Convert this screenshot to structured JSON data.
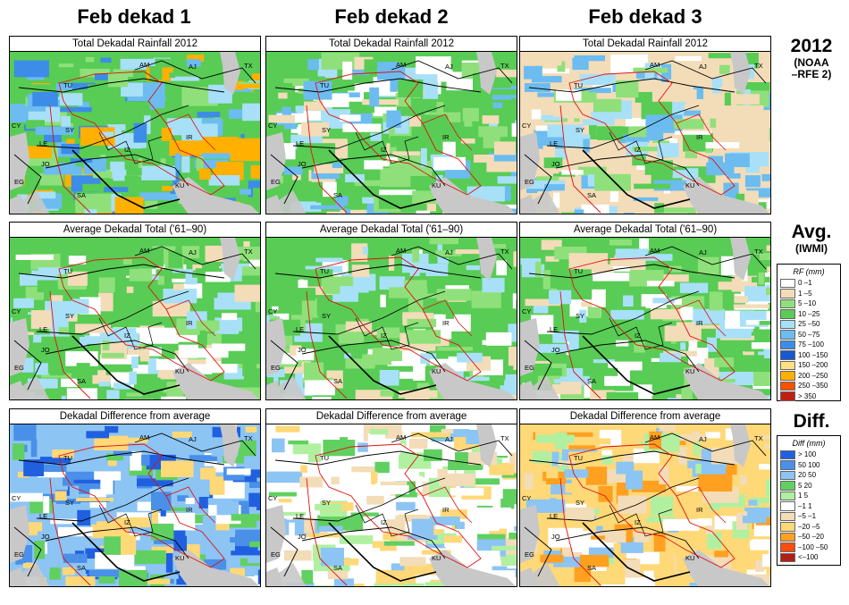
{
  "columns": [
    "Feb dekad 1",
    "Feb dekad 2",
    "Feb dekad 3"
  ],
  "rows": [
    {
      "title": "Total Dekadal Rainfall 2012",
      "label": "2012",
      "sublabel": "(NOAA\n–RFE 2)",
      "kind": "total"
    },
    {
      "title": "Average Dekadal Total ('61–90)",
      "label": "Avg.",
      "sublabel": "(IWMI)",
      "kind": "avg"
    },
    {
      "title": "Dekadal Difference from average",
      "label": "Diff.",
      "sublabel": "",
      "kind": "diff"
    }
  ],
  "map_labels": [
    "AM",
    "AJ",
    "TX",
    "TU",
    "CY",
    "SY",
    "IR",
    "LE",
    "IZ",
    "JO",
    "EG",
    "KU",
    "SA"
  ],
  "rf_legend": {
    "title": "RF (mm)",
    "items": [
      {
        "label": "0 –1",
        "color": "#ffffff"
      },
      {
        "label": "1 –5",
        "color": "#f3dcb8"
      },
      {
        "label": "5 –10",
        "color": "#8fe07a"
      },
      {
        "label": "10 –25",
        "color": "#58cc55"
      },
      {
        "label": "25 –50",
        "color": "#a8e0f8"
      },
      {
        "label": "50 –75",
        "color": "#6cbcf0"
      },
      {
        "label": "75 –100",
        "color": "#3c8ce8"
      },
      {
        "label": "100 –150",
        "color": "#1858d0"
      },
      {
        "label": "150 –200",
        "color": "#ffe080"
      },
      {
        "label": "200 –250",
        "color": "#ffb000"
      },
      {
        "label": "250 –350",
        "color": "#ff5000"
      },
      {
        "label": "> 350",
        "color": "#c02010"
      }
    ]
  },
  "diff_legend": {
    "title": "Diff (mm)",
    "items": [
      {
        "label": "> 100",
        "color": "#2060e0"
      },
      {
        "label": "50 100",
        "color": "#4a90e8"
      },
      {
        "label": "20  50",
        "color": "#8cc4f4"
      },
      {
        "label": "5  20",
        "color": "#60d060"
      },
      {
        "label": "1   5",
        "color": "#b0f0a0"
      },
      {
        "label": "–1   1",
        "color": "#ffffff"
      },
      {
        "label": "–5  –1",
        "color": "#f3dcb8"
      },
      {
        "label": "–20  –5",
        "color": "#ffd878"
      },
      {
        "label": "–50  –20",
        "color": "#ffa020"
      },
      {
        "label": "–100 –50",
        "color": "#ff4a10"
      },
      {
        "label": "<–100",
        "color": "#b02018"
      }
    ]
  },
  "colors": {
    "sea": "#c8c8c8",
    "border_red": "#e01010",
    "border_black": "#000000"
  }
}
